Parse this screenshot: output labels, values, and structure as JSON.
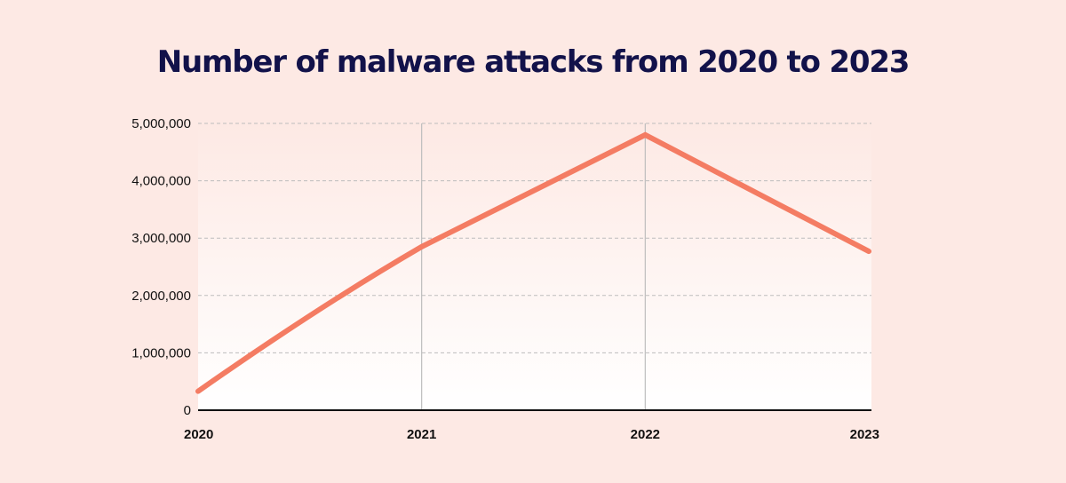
{
  "title": "Number of malware attacks from  2020 to 2023",
  "colors": {
    "background": "#fde9e4",
    "line": "#f47c63",
    "title": "#12124a",
    "grid": "#bdbdbd",
    "axis": "#111111"
  },
  "chart_data": {
    "type": "line",
    "title": "Number of malware attacks from  2020 to 2023",
    "xlabel": "",
    "ylabel": "",
    "categories": [
      "2020",
      "2021",
      "2022",
      "2023"
    ],
    "series": [
      {
        "name": "Malware attacks",
        "values": [
          330000,
          2850000,
          4800000,
          2770000
        ]
      }
    ],
    "ylim": [
      0,
      5000000
    ],
    "yticks": [
      0,
      1000000,
      2000000,
      3000000,
      4000000,
      5000000
    ],
    "ytick_labels": [
      "0",
      "1,000,000",
      "2,000,000",
      "3,000,000",
      "4,000,000",
      "5,000,000"
    ],
    "grid": {
      "horizontal": "dashed",
      "vertical": "solid at 2021 and 2022"
    },
    "legend": "none"
  }
}
